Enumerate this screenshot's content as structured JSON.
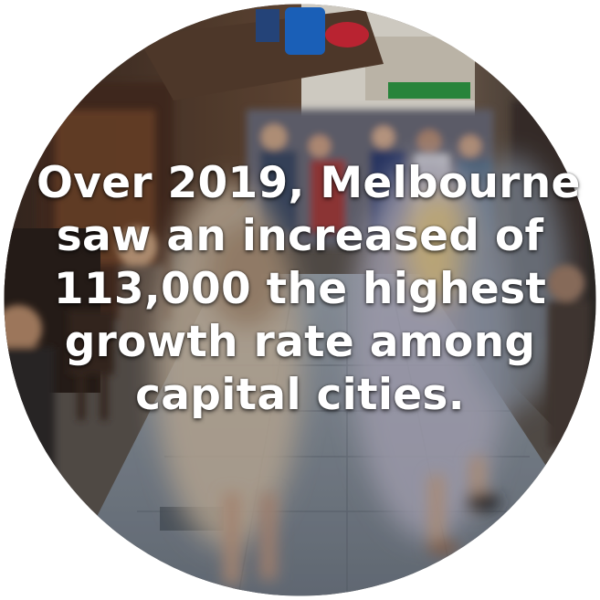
{
  "caption": {
    "lines": [
      "Over 2019, Melbourne",
      "saw an increased of",
      "113,000 the highest",
      "growth rate among",
      "capital cities."
    ]
  },
  "photo": {
    "subject": "blurred pedestrians walking in a busy laneway",
    "accent_colors": {
      "pavement": "#8b95a3",
      "sky": "#f2efe8",
      "awning": "#5a4030",
      "sign_blue": "#1f6fd6",
      "sign_red": "#d8293a",
      "sign_green": "#2f9a45"
    }
  }
}
